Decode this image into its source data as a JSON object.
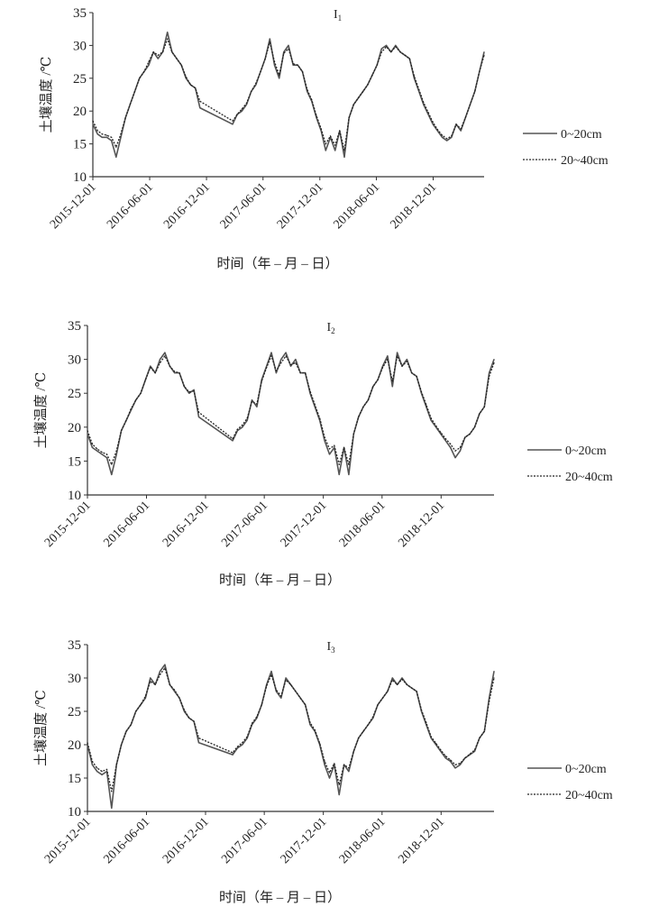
{
  "chart_data": [
    {
      "type": "line",
      "title": "I",
      "title_sub": "1",
      "xlabel": "时间（年 – 月 – 日）",
      "ylabel": "土壤温度 /℃",
      "ylim": [
        10,
        35
      ],
      "yticks": [
        10,
        15,
        20,
        25,
        30,
        35
      ],
      "xlim": [
        "2015-12-01",
        "2019-05-14"
      ],
      "xticks": [
        "2015-12-01",
        "2016-06-01",
        "2016-12-01",
        "2017-06-01",
        "2017-12-01",
        "2018-06-01",
        "2018-12-01"
      ],
      "x_start": "2015-12-01",
      "x_step_days": 15,
      "legend_position": "right",
      "series": [
        {
          "name": "0~20cm",
          "style": "solid",
          "color": "#555555",
          "values": [
            18,
            16.5,
            16,
            16,
            15.5,
            13,
            16,
            19,
            21,
            23,
            25,
            26,
            27,
            29,
            28,
            29,
            32,
            29,
            28,
            27,
            25,
            24,
            23.5,
            20.5,
            null,
            null,
            null,
            null,
            null,
            null,
            18,
            19.5,
            20,
            21,
            23,
            24,
            26,
            28,
            31,
            27,
            25,
            29,
            30,
            27,
            27,
            26,
            23,
            21.5,
            19,
            17,
            14,
            16,
            14,
            17,
            13,
            19,
            21,
            22,
            23,
            24,
            25.5,
            27,
            29.5,
            30,
            29,
            30,
            29,
            28.5,
            28,
            25,
            23,
            21,
            19.5,
            18,
            17,
            16,
            15.5,
            16,
            18,
            17,
            19,
            21,
            23,
            26,
            29
          ]
        },
        {
          "name": "20~40cm",
          "style": "dotted",
          "color": "#222222",
          "values": [
            18.5,
            17,
            16.5,
            16.3,
            16,
            14.5,
            16.5,
            19,
            21,
            23,
            25,
            26,
            27.5,
            29,
            28.5,
            29,
            31,
            29,
            28,
            27,
            25.2,
            24,
            23.5,
            21.5,
            null,
            null,
            null,
            null,
            null,
            null,
            18.5,
            19.5,
            20.3,
            21.2,
            23,
            24.2,
            26,
            28,
            30.5,
            27.5,
            25.5,
            28.8,
            29.5,
            27.2,
            27,
            26,
            23.3,
            21.7,
            19.3,
            17.3,
            15,
            16.2,
            14.8,
            17,
            14,
            19,
            21,
            22,
            23,
            24,
            25.5,
            27,
            29,
            29.8,
            29,
            29.8,
            29,
            28.5,
            28,
            25.3,
            23.3,
            21.3,
            19.8,
            18.3,
            17.2,
            16.3,
            15.8,
            16.2,
            18,
            17.3,
            19,
            21,
            23,
            26,
            28.5
          ]
        }
      ]
    },
    {
      "type": "line",
      "title": "I",
      "title_sub": "2",
      "xlabel": "时间（年 – 月 – 日）",
      "ylabel": "土壤温度 /℃",
      "ylim": [
        10,
        35
      ],
      "yticks": [
        10,
        15,
        20,
        25,
        30,
        35
      ],
      "xlim": [
        "2015-12-01",
        "2019-05-14"
      ],
      "xticks": [
        "2015-12-01",
        "2016-06-01",
        "2016-12-01",
        "2017-06-01",
        "2017-12-01",
        "2018-06-01",
        "2018-12-01"
      ],
      "x_start": "2015-12-01",
      "x_step_days": 15,
      "legend_position": "right",
      "series": [
        {
          "name": "0~20cm",
          "style": "solid",
          "color": "#555555",
          "values": [
            19,
            17,
            16.5,
            16,
            15.5,
            13,
            16,
            19.5,
            21,
            22.5,
            24,
            25,
            27,
            29,
            28,
            30,
            31,
            29,
            28,
            28,
            26,
            25,
            25.5,
            21.5,
            null,
            null,
            null,
            null,
            null,
            null,
            18,
            19.5,
            20,
            21,
            24,
            23,
            27,
            29,
            31,
            28,
            30,
            31,
            29,
            30,
            28,
            28,
            25,
            23,
            21,
            18,
            16,
            17,
            13,
            17,
            13,
            19,
            21.5,
            23,
            24,
            26,
            27,
            29,
            30.5,
            26,
            31,
            29,
            30,
            28,
            27.5,
            25,
            23,
            21,
            20,
            19,
            18,
            17,
            15.5,
            16.5,
            18.5,
            19,
            20,
            22,
            23,
            28,
            30
          ]
        },
        {
          "name": "20~40cm",
          "style": "dotted",
          "color": "#222222",
          "values": [
            19.5,
            17.5,
            16.8,
            16.3,
            16,
            14.5,
            16.5,
            19.5,
            21,
            22.7,
            24,
            25,
            27,
            28.8,
            28,
            29.5,
            30.5,
            29,
            28.2,
            28,
            26,
            25.2,
            25.3,
            22.2,
            null,
            null,
            null,
            null,
            null,
            null,
            18.3,
            19.7,
            20.3,
            21.3,
            23.8,
            23.4,
            26.8,
            28.8,
            30.5,
            28.3,
            29.5,
            30.5,
            29.2,
            29.5,
            28,
            28,
            25.3,
            23.3,
            21.3,
            18.5,
            16.8,
            17.3,
            14.5,
            17,
            14.5,
            19,
            21.5,
            23,
            24,
            26,
            27,
            28.8,
            30,
            26.8,
            30.5,
            29,
            29.7,
            28,
            27.5,
            25.2,
            23.3,
            21.3,
            20.2,
            19.2,
            18.3,
            17.5,
            16.5,
            17,
            18.5,
            19,
            20,
            22,
            23,
            27.5,
            29.5
          ]
        }
      ]
    },
    {
      "type": "line",
      "title": "I",
      "title_sub": "3",
      "xlabel": "时间（年 – 月 – 日）",
      "ylabel": "土壤温度 /℃",
      "ylim": [
        10,
        35
      ],
      "yticks": [
        10,
        15,
        20,
        25,
        30,
        35
      ],
      "xlim": [
        "2015-12-01",
        "2019-05-14"
      ],
      "xticks": [
        "2015-12-01",
        "2016-06-01",
        "2016-12-01",
        "2017-06-01",
        "2017-12-01",
        "2018-06-01",
        "2018-12-01"
      ],
      "x_start": "2015-12-01",
      "x_step_days": 15,
      "legend_position": "right",
      "series": [
        {
          "name": "0~20cm",
          "style": "solid",
          "color": "#555555",
          "values": [
            20,
            17,
            16,
            15.5,
            16,
            10.5,
            17,
            20,
            22,
            23,
            25,
            26,
            27,
            30,
            29,
            31,
            32,
            29,
            28,
            27,
            25,
            24,
            23.5,
            20.3,
            null,
            null,
            null,
            null,
            null,
            null,
            18.5,
            19.5,
            20,
            21,
            23,
            24,
            26,
            29,
            31,
            28,
            27,
            30,
            29,
            28,
            27,
            26,
            23,
            22,
            20,
            17,
            15,
            17,
            12.5,
            17,
            16,
            19,
            21,
            22,
            23,
            24,
            26,
            27,
            28,
            30,
            29,
            30,
            29,
            28.5,
            28,
            25,
            23,
            21,
            20,
            19,
            18,
            17.5,
            16.5,
            17,
            18,
            18.5,
            19,
            21,
            22,
            27,
            31
          ]
        },
        {
          "name": "20~40cm",
          "style": "dotted",
          "color": "#222222",
          "values": [
            20.3,
            17.5,
            16.5,
            16,
            16.3,
            13,
            17,
            20,
            22,
            23,
            25,
            26,
            27.3,
            29.5,
            29,
            30.5,
            31.5,
            29,
            28.2,
            27,
            25.2,
            24,
            23.5,
            21,
            null,
            null,
            null,
            null,
            null,
            null,
            18.8,
            19.7,
            20.3,
            21.2,
            23.2,
            24.2,
            26,
            28.8,
            30.5,
            28.2,
            27.3,
            29.7,
            29,
            28,
            27,
            26,
            23.3,
            22.2,
            20.2,
            17.5,
            15.8,
            17.2,
            14,
            17,
            16.5,
            19,
            21,
            22,
            23,
            24.2,
            26,
            27,
            28,
            29.7,
            29,
            29.8,
            29,
            28.5,
            28,
            25.2,
            23.3,
            21.2,
            20.2,
            19.2,
            18.3,
            17.7,
            17,
            17.2,
            18,
            18.6,
            19.2,
            21,
            22,
            26.5,
            30
          ]
        }
      ]
    }
  ]
}
